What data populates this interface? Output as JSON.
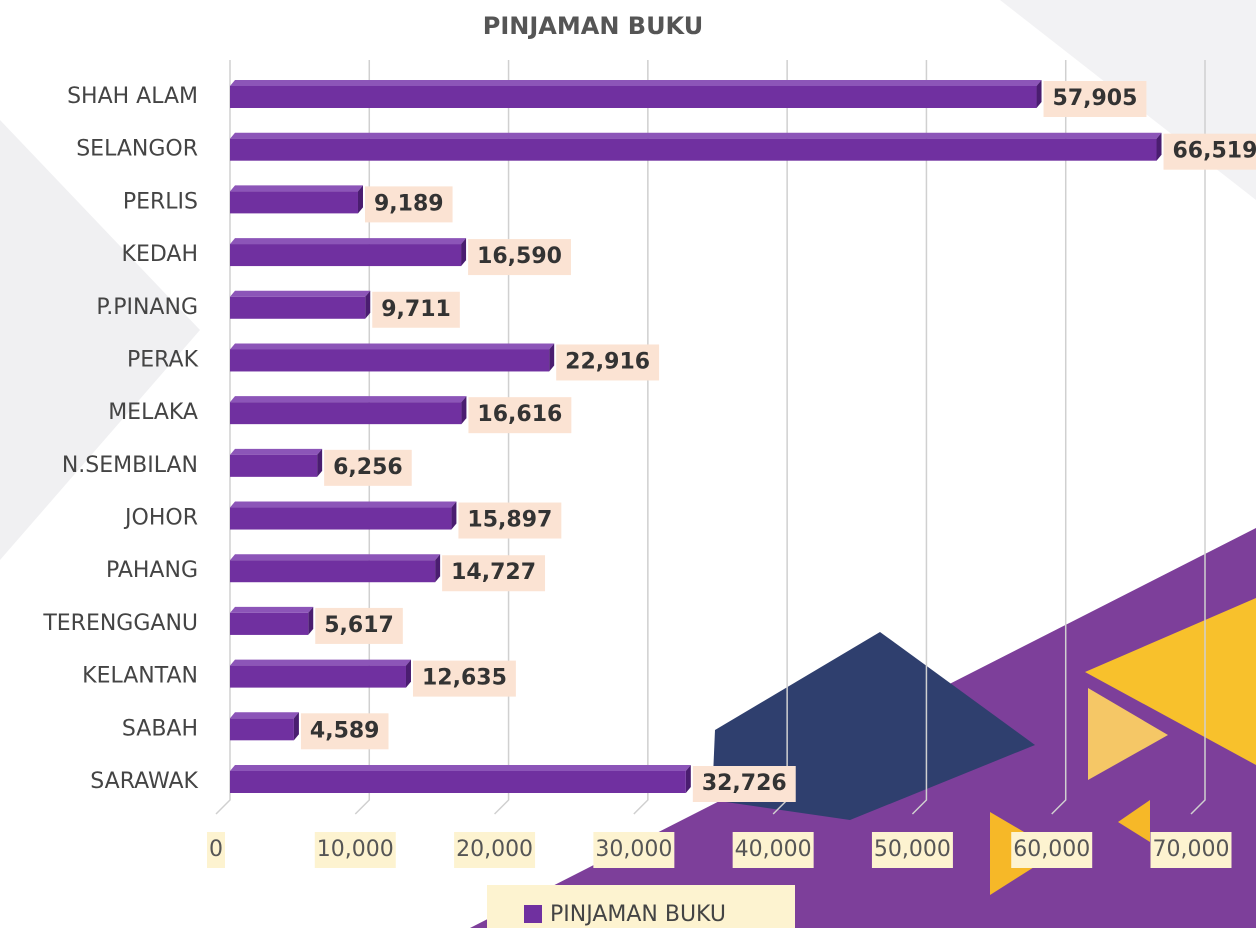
{
  "chart_data": {
    "type": "bar",
    "orientation": "horizontal",
    "title": "PINJAMAN BUKU",
    "categories": [
      "SHAH ALAM",
      "SELANGOR",
      "PERLIS",
      "KEDAH",
      "P.PINANG",
      "PERAK",
      "MELAKA",
      "N.SEMBILAN",
      "JOHOR",
      "PAHANG",
      "TERENGGANU",
      "KELANTAN",
      "SABAH",
      "SARAWAK"
    ],
    "series": [
      {
        "name": "PINJAMAN BUKU",
        "color": "#7030a0",
        "values": [
          57905,
          66519,
          9189,
          16590,
          9711,
          22916,
          16616,
          6256,
          15897,
          14727,
          5617,
          12635,
          4589,
          32726
        ],
        "value_labels": [
          "57,905",
          "66,519",
          "9,189",
          "16,590",
          "9,711",
          "22,916",
          "16,616",
          "6,256",
          "15,897",
          "14,727",
          "5,617",
          "12,635",
          "4,589",
          "32,726"
        ]
      }
    ],
    "xlim": [
      0,
      70000
    ],
    "xticks": [
      0,
      {
        "value": 10000,
        "label": "10,000"
      },
      {
        "value": 20000,
        "label": "20,000"
      },
      {
        "value": 30000,
        "label": "30,000"
      },
      {
        "value": 40000,
        "label": "40,000"
      },
      {
        "value": 50000,
        "label": "50,000"
      },
      {
        "value": 60000,
        "label": "60,000"
      },
      {
        "value": 70000,
        "label": "70,000"
      }
    ],
    "grid": true,
    "legend": "bottom"
  }
}
